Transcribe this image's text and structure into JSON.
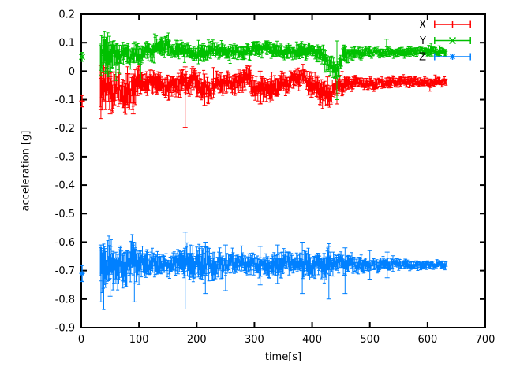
{
  "figure": {
    "background": "#ffffff",
    "axis_color": "#000000"
  },
  "chart_data": {
    "type": "scatter",
    "style": "errorbars",
    "title": "",
    "xlabel": "time[s]",
    "ylabel": "acceleration [g]",
    "xlim": [
      0,
      700
    ],
    "ylim": [
      -0.9,
      0.2
    ],
    "grid": false,
    "legend_position": "top-right-inside",
    "xticks": {
      "values": [
        0,
        100,
        200,
        300,
        400,
        500,
        600,
        700
      ],
      "labels": [
        "0",
        "100",
        "200",
        "300",
        "400",
        "500",
        "600",
        "700"
      ]
    },
    "yticks": {
      "values": [
        0.2,
        0.1,
        0,
        -0.1,
        -0.2,
        -0.3,
        -0.4,
        -0.5,
        -0.6,
        -0.7,
        -0.8,
        -0.9
      ],
      "labels": [
        "0.2",
        "0.1",
        "0",
        "-0.1",
        "-0.2",
        "-0.3",
        "-0.4",
        "-0.5",
        "-0.6",
        "-0.7",
        "-0.8",
        "-0.9"
      ]
    },
    "series": [
      {
        "name": "X",
        "color": "#ff0000",
        "marker": "plus",
        "first_point": {
          "t": 0,
          "value": -0.105,
          "err": 0.02
        },
        "t_range": [
          33,
          632
        ],
        "envelope": [
          [
            33,
            -0.055,
            0.07
          ],
          [
            40,
            -0.05,
            0.06
          ],
          [
            55,
            -0.07,
            0.055
          ],
          [
            65,
            -0.05,
            0.045
          ],
          [
            75,
            -0.075,
            0.05
          ],
          [
            90,
            -0.06,
            0.05
          ],
          [
            105,
            -0.045,
            0.035
          ],
          [
            130,
            -0.04,
            0.03
          ],
          [
            150,
            -0.045,
            0.035
          ],
          [
            170,
            -0.04,
            0.03
          ],
          [
            180,
            -0.045,
            0.035
          ],
          [
            195,
            -0.035,
            0.03
          ],
          [
            210,
            -0.06,
            0.04
          ],
          [
            222,
            -0.07,
            0.035
          ],
          [
            235,
            -0.04,
            0.03
          ],
          [
            255,
            -0.04,
            0.028
          ],
          [
            270,
            -0.045,
            0.03
          ],
          [
            285,
            -0.025,
            0.028
          ],
          [
            300,
            -0.06,
            0.038
          ],
          [
            308,
            -0.075,
            0.035
          ],
          [
            318,
            -0.05,
            0.03
          ],
          [
            328,
            -0.07,
            0.035
          ],
          [
            340,
            -0.045,
            0.03
          ],
          [
            355,
            -0.045,
            0.028
          ],
          [
            370,
            -0.03,
            0.028
          ],
          [
            385,
            -0.025,
            0.028
          ],
          [
            400,
            -0.05,
            0.032
          ],
          [
            415,
            -0.065,
            0.035
          ],
          [
            425,
            -0.085,
            0.032
          ],
          [
            437,
            -0.06,
            0.03
          ],
          [
            450,
            -0.05,
            0.025
          ],
          [
            465,
            -0.045,
            0.02
          ],
          [
            490,
            -0.042,
            0.018
          ],
          [
            520,
            -0.04,
            0.016
          ],
          [
            560,
            -0.038,
            0.014
          ],
          [
            600,
            -0.038,
            0.013
          ],
          [
            632,
            -0.038,
            0.012
          ]
        ],
        "spikes": [
          [
            34,
            -0.135,
            0.02
          ],
          [
            50,
            -0.15,
            -0.02
          ],
          [
            90,
            -0.15,
            -0.01
          ],
          [
            180,
            -0.197,
            0.015
          ],
          [
            214,
            -0.12,
            -0.01
          ],
          [
            310,
            -0.115,
            0.0
          ],
          [
            427,
            -0.12,
            -0.02
          ],
          [
            443,
            -0.115,
            0.0
          ]
        ]
      },
      {
        "name": "Y",
        "color": "#00c000",
        "marker": "cross",
        "first_point": {
          "t": 0,
          "value": 0.05,
          "err": 0.015
        },
        "t_range": [
          33,
          632
        ],
        "envelope": [
          [
            33,
            0.05,
            0.055
          ],
          [
            40,
            0.055,
            0.05
          ],
          [
            50,
            0.05,
            0.045
          ],
          [
            60,
            0.045,
            0.04
          ],
          [
            70,
            0.055,
            0.035
          ],
          [
            80,
            0.055,
            0.03
          ],
          [
            95,
            0.06,
            0.03
          ],
          [
            110,
            0.065,
            0.028
          ],
          [
            130,
            0.08,
            0.028
          ],
          [
            145,
            0.085,
            0.025
          ],
          [
            160,
            0.07,
            0.025
          ],
          [
            175,
            0.075,
            0.025
          ],
          [
            190,
            0.07,
            0.022
          ],
          [
            205,
            0.063,
            0.022
          ],
          [
            220,
            0.07,
            0.022
          ],
          [
            240,
            0.072,
            0.022
          ],
          [
            260,
            0.07,
            0.02
          ],
          [
            280,
            0.07,
            0.022
          ],
          [
            295,
            0.078,
            0.022
          ],
          [
            310,
            0.08,
            0.02
          ],
          [
            325,
            0.072,
            0.02
          ],
          [
            345,
            0.068,
            0.02
          ],
          [
            365,
            0.07,
            0.02
          ],
          [
            385,
            0.075,
            0.022
          ],
          [
            400,
            0.072,
            0.02
          ],
          [
            412,
            0.06,
            0.025
          ],
          [
            422,
            0.035,
            0.03
          ],
          [
            432,
            0.02,
            0.028
          ],
          [
            440,
            0.0,
            0.025
          ],
          [
            447,
            0.03,
            0.03
          ],
          [
            455,
            0.06,
            0.025
          ],
          [
            465,
            0.065,
            0.02
          ],
          [
            490,
            0.065,
            0.016
          ],
          [
            520,
            0.066,
            0.014
          ],
          [
            560,
            0.067,
            0.013
          ],
          [
            600,
            0.068,
            0.012
          ],
          [
            632,
            0.068,
            0.012
          ]
        ],
        "spikes": [
          [
            42,
            0.0,
            0.112
          ],
          [
            60,
            -0.033,
            0.05
          ],
          [
            103,
            -0.03,
            0.06
          ],
          [
            140,
            0.06,
            0.115
          ],
          [
            443,
            -0.1,
            0.106
          ],
          [
            529,
            0.05,
            0.112
          ]
        ]
      },
      {
        "name": "Z",
        "color": "#0080ff",
        "marker": "star",
        "first_point": {
          "t": 0,
          "value": -0.71,
          "err": 0.028
        },
        "t_range": [
          33,
          632
        ],
        "envelope": [
          [
            33,
            -0.68,
            0.06
          ],
          [
            45,
            -0.675,
            0.065
          ],
          [
            60,
            -0.675,
            0.06
          ],
          [
            75,
            -0.68,
            0.06
          ],
          [
            90,
            -0.675,
            0.055
          ],
          [
            105,
            -0.68,
            0.045
          ],
          [
            120,
            -0.675,
            0.035
          ],
          [
            140,
            -0.675,
            0.03
          ],
          [
            160,
            -0.675,
            0.03
          ],
          [
            180,
            -0.675,
            0.045
          ],
          [
            200,
            -0.68,
            0.05
          ],
          [
            215,
            -0.675,
            0.05
          ],
          [
            230,
            -0.675,
            0.045
          ],
          [
            250,
            -0.675,
            0.03
          ],
          [
            270,
            -0.678,
            0.025
          ],
          [
            290,
            -0.678,
            0.028
          ],
          [
            310,
            -0.675,
            0.03
          ],
          [
            330,
            -0.678,
            0.028
          ],
          [
            350,
            -0.675,
            0.03
          ],
          [
            370,
            -0.678,
            0.028
          ],
          [
            385,
            -0.675,
            0.035
          ],
          [
            400,
            -0.678,
            0.03
          ],
          [
            415,
            -0.675,
            0.032
          ],
          [
            430,
            -0.678,
            0.035
          ],
          [
            445,
            -0.675,
            0.03
          ],
          [
            460,
            -0.678,
            0.028
          ],
          [
            480,
            -0.678,
            0.022
          ],
          [
            510,
            -0.678,
            0.018
          ],
          [
            550,
            -0.679,
            0.015
          ],
          [
            590,
            -0.68,
            0.012
          ],
          [
            632,
            -0.68,
            0.01
          ]
        ],
        "spikes": [
          [
            34,
            -0.81,
            -0.61
          ],
          [
            50,
            -0.79,
            -0.615
          ],
          [
            92,
            -0.81,
            -0.62
          ],
          [
            180,
            -0.835,
            -0.565
          ],
          [
            215,
            -0.78,
            -0.6
          ],
          [
            250,
            -0.77,
            -0.61
          ],
          [
            310,
            -0.75,
            -0.615
          ],
          [
            340,
            -0.745,
            -0.61
          ],
          [
            383,
            -0.78,
            -0.6
          ],
          [
            429,
            -0.8,
            -0.615
          ],
          [
            457,
            -0.78,
            -0.62
          ],
          [
            500,
            -0.73,
            -0.63
          ],
          [
            530,
            -0.725,
            -0.635
          ]
        ]
      }
    ]
  }
}
